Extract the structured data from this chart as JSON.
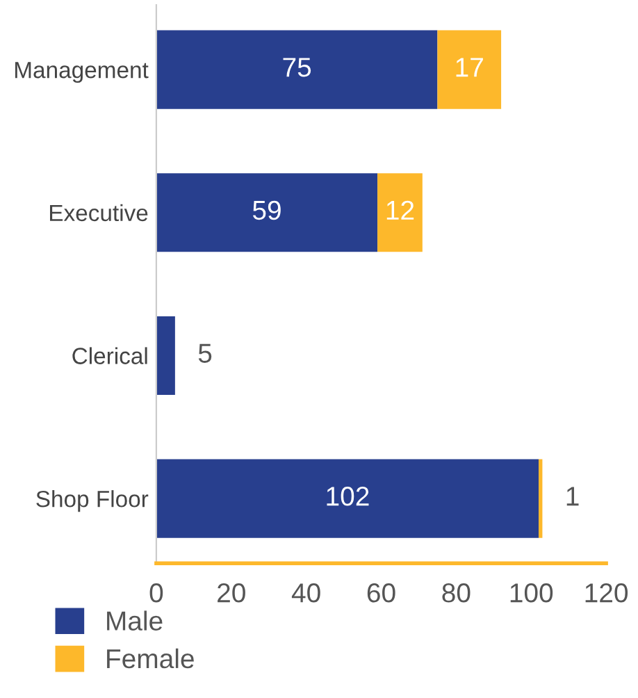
{
  "chart_data": {
    "type": "bar",
    "orientation": "horizontal",
    "stacked": true,
    "categories": [
      "Management",
      "Executive",
      "Clerical",
      "Shop Floor"
    ],
    "series": [
      {
        "name": "Male",
        "color": "#283f8e",
        "values": [
          75,
          59,
          5,
          102
        ],
        "value_labels": [
          "75",
          "59",
          "5",
          "102"
        ]
      },
      {
        "name": "Female",
        "color": "#fdb82b",
        "values": [
          17,
          12,
          null,
          1
        ],
        "value_labels": [
          "17",
          "12",
          null,
          "1"
        ]
      }
    ],
    "xlim": [
      0,
      120
    ],
    "xticks": [
      0,
      20,
      40,
      60,
      80,
      100,
      120
    ],
    "grid": false,
    "legend": "bottom left"
  }
}
